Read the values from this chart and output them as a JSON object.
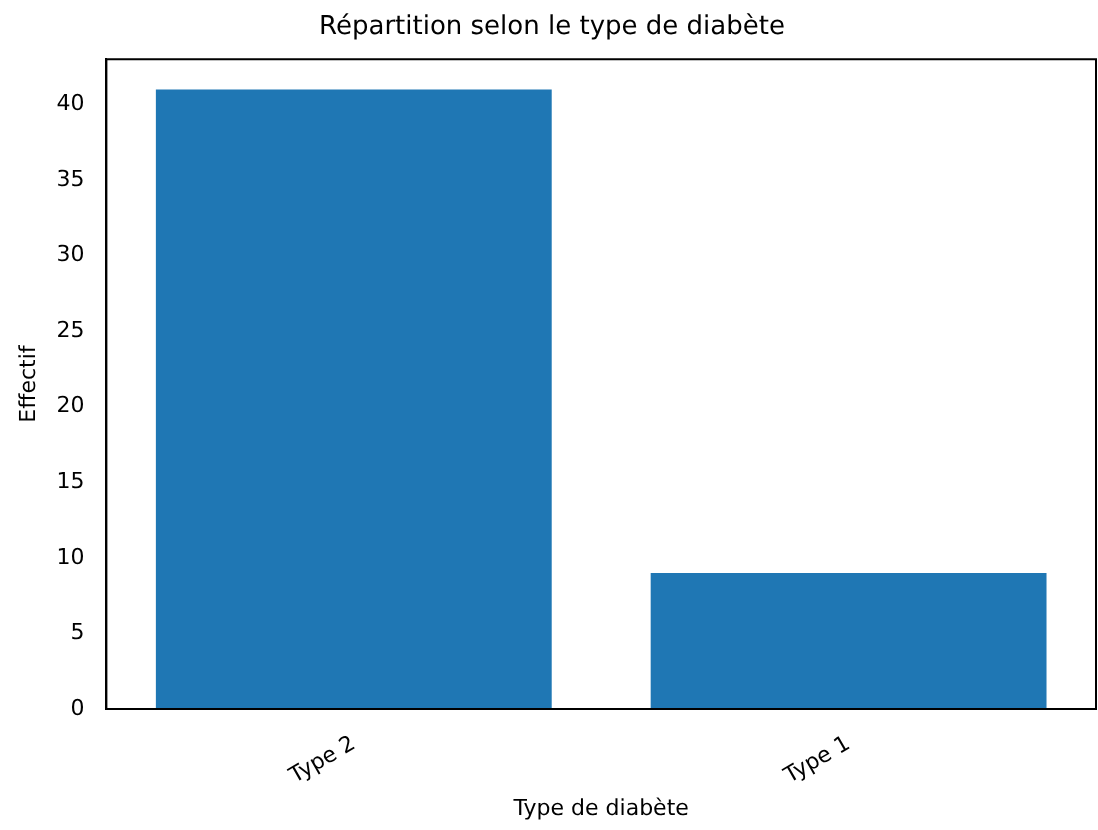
{
  "chart_data": {
    "type": "bar",
    "title": "Répartition selon le type de diabète",
    "xlabel": "Type de diabète",
    "ylabel": "Effectif",
    "categories": [
      "Type 2",
      "Type 1"
    ],
    "values": [
      41,
      9
    ],
    "color": "#1f77b4",
    "ylim": [
      0,
      43
    ],
    "yticks": [
      0,
      5,
      10,
      15,
      20,
      25,
      30,
      35,
      40
    ],
    "grid": false,
    "legend": false
  }
}
